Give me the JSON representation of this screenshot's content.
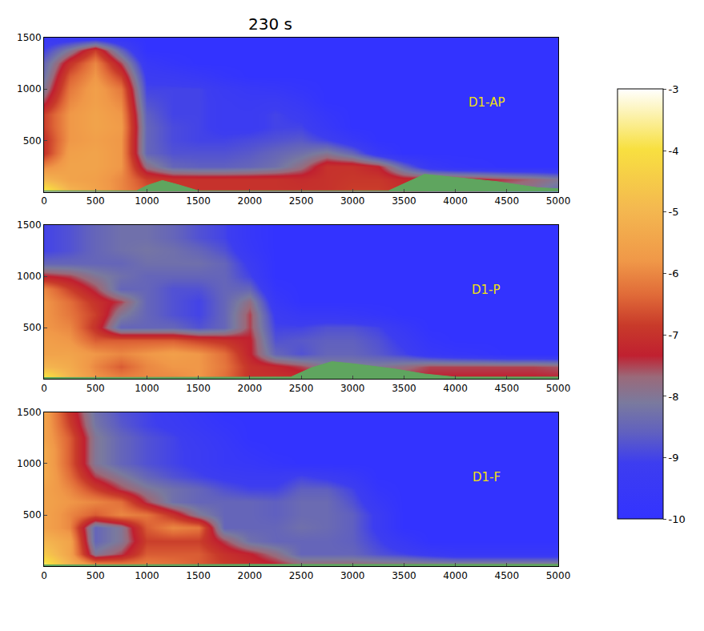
{
  "title": "230 s",
  "colorbar": {
    "zlim": [
      -10,
      -3
    ],
    "zticks": [
      -3,
      -4,
      -5,
      -6,
      -7,
      -8,
      -9,
      -10
    ]
  },
  "chart_data": [
    {
      "type": "heatmap",
      "label": "D1-AP",
      "xlim": [
        0,
        5000
      ],
      "xticks": [
        0,
        500,
        1000,
        1500,
        2000,
        2500,
        3000,
        3500,
        4000,
        4500,
        5000
      ],
      "ylim": [
        0,
        1500
      ],
      "yticks": [
        500,
        1000,
        1500
      ],
      "x": [
        0,
        250,
        500,
        750,
        1000,
        1250,
        1500,
        1750,
        2000,
        2250,
        2500,
        2750,
        3000,
        3250,
        3500,
        3750,
        4000,
        4250,
        4500,
        4750,
        5000
      ],
      "y": [
        0,
        125,
        250,
        375,
        500,
        625,
        750,
        875,
        1000,
        1125,
        1250,
        1375,
        1500
      ],
      "z": [
        [
          -3.5,
          -5,
          -5.5,
          -6,
          -6.5,
          -6.8,
          -7,
          -7,
          -7,
          -7,
          -7,
          -7,
          -6.8,
          -6.8,
          -7,
          -7.5,
          -7.5,
          -7.5,
          -8,
          -8,
          -8.5
        ],
        [
          -5,
          -5.5,
          -5.6,
          -6,
          -6.8,
          -7,
          -7,
          -7,
          -7,
          -7,
          -7.1,
          -7,
          -6.9,
          -6.9,
          -7.2,
          -7.2,
          -7.2,
          -7.3,
          -7.5,
          -7.7,
          -8
        ],
        [
          -6,
          -5.5,
          -5.5,
          -5.8,
          -7.8,
          -8.5,
          -8.6,
          -8.6,
          -8.5,
          -8.3,
          -7.8,
          -7,
          -7,
          -7.3,
          -8.5,
          -9.5,
          -9.8,
          -9.9,
          -10,
          -10,
          -10
        ],
        [
          -7,
          -5.6,
          -5.5,
          -5.8,
          -8.5,
          -8.8,
          -8.8,
          -8.8,
          -8.7,
          -8.5,
          -8.3,
          -8,
          -8.5,
          -9.5,
          -10,
          -10,
          -10,
          -10,
          -10,
          -10,
          -10
        ],
        [
          -7,
          -5.8,
          -5.6,
          -5.8,
          -8.5,
          -8.9,
          -9,
          -9,
          -8.9,
          -8.8,
          -8.7,
          -9,
          -9.5,
          -10,
          -10,
          -10,
          -10,
          -10,
          -10,
          -10,
          -10
        ],
        [
          -6.8,
          -5.8,
          -5.5,
          -5.7,
          -8.5,
          -8.9,
          -9,
          -9.2,
          -9.2,
          -9,
          -9,
          -9.5,
          -10,
          -10,
          -10,
          -10,
          -10,
          -10,
          -10,
          -10,
          -10
        ],
        [
          -6.8,
          -5.8,
          -5.5,
          -5.8,
          -8.6,
          -9,
          -9,
          -9.2,
          -9.2,
          -9,
          -9.2,
          -9.7,
          -10,
          -10,
          -10,
          -10,
          -10,
          -10,
          -10,
          -10,
          -10
        ],
        [
          -7.5,
          -6,
          -5.6,
          -6,
          -8.8,
          -9,
          -9,
          -9.2,
          -9.3,
          -9.2,
          -9.5,
          -10,
          -10,
          -10,
          -10,
          -10,
          -10,
          -10,
          -10,
          -10,
          -10
        ],
        [
          -8,
          -6.2,
          -5.6,
          -6.2,
          -9,
          -9,
          -9,
          -9.3,
          -9.5,
          -9.6,
          -9.8,
          -10,
          -10,
          -10,
          -10,
          -10,
          -10,
          -10,
          -10,
          -10,
          -10
        ],
        [
          -8.3,
          -6.5,
          -5.8,
          -6.8,
          -9.2,
          -9.3,
          -9.5,
          -9.8,
          -10,
          -10,
          -10,
          -10,
          -10,
          -10,
          -10,
          -10,
          -10,
          -10,
          -10,
          -10,
          -10
        ],
        [
          -8.5,
          -7,
          -6,
          -7.5,
          -9.5,
          -9.8,
          -10,
          -10,
          -10,
          -10,
          -10,
          -10,
          -10,
          -10,
          -10,
          -10,
          -10,
          -10,
          -10,
          -10,
          -10
        ],
        [
          -9,
          -8,
          -6.8,
          -8.5,
          -10,
          -10,
          -10,
          -10,
          -10,
          -10,
          -10,
          -10,
          -10,
          -10,
          -10,
          -10,
          -10,
          -10,
          -10,
          -10,
          -10
        ],
        [
          -9.5,
          -9.5,
          -9.5,
          -9.8,
          -10,
          -10,
          -10,
          -10,
          -10,
          -10,
          -10,
          -10,
          -10,
          -10,
          -10,
          -10,
          -10,
          -10,
          -10,
          -10,
          -10
        ]
      ],
      "terrain": {
        "x": [
          0,
          900,
          1000,
          1150,
          1300,
          1500,
          3350,
          3500,
          3700,
          4000,
          4400,
          4800,
          5000
        ],
        "y": [
          10,
          10,
          60,
          110,
          70,
          10,
          10,
          80,
          170,
          140,
          100,
          40,
          30
        ]
      }
    },
    {
      "type": "heatmap",
      "label": "D1-P",
      "xlim": [
        0,
        5000
      ],
      "xticks": [
        0,
        500,
        1000,
        1500,
        2000,
        2500,
        3000,
        3500,
        4000,
        4500,
        5000
      ],
      "ylim": [
        0,
        1500
      ],
      "yticks": [
        500,
        1000,
        1500
      ],
      "x": [
        0,
        250,
        500,
        750,
        1000,
        1250,
        1500,
        1750,
        2000,
        2250,
        2500,
        2750,
        3000,
        3250,
        3500,
        3750,
        4000,
        4250,
        4500,
        4750,
        5000
      ],
      "y": [
        0,
        125,
        250,
        375,
        500,
        625,
        750,
        875,
        1000,
        1125,
        1250,
        1375,
        1500
      ],
      "z": [
        [
          -3.5,
          -5,
          -5.8,
          -6,
          -6,
          -6,
          -5.8,
          -6.3,
          -7,
          -7,
          -7,
          -7,
          -7.2,
          -7.2,
          -7.3,
          -7.3,
          -7.3,
          -7.3,
          -7.3,
          -7.3,
          -7.3
        ],
        [
          -5,
          -5.3,
          -6,
          -6.5,
          -6,
          -5.8,
          -5.8,
          -6.2,
          -7,
          -7.2,
          -7.5,
          -8,
          -8,
          -8,
          -7.8,
          -7.5,
          -7.5,
          -7.5,
          -7.5,
          -7.5,
          -7.6
        ],
        [
          -5.5,
          -5.5,
          -5.8,
          -6,
          -5.8,
          -5.6,
          -5.8,
          -6.3,
          -7.3,
          -8.5,
          -8.8,
          -8.5,
          -8.5,
          -8.7,
          -9,
          -9.5,
          -9.7,
          -9.8,
          -10,
          -10,
          -10
        ],
        [
          -5.6,
          -5.8,
          -6.5,
          -6.5,
          -6.5,
          -6.5,
          -6.8,
          -7,
          -7.3,
          -8.8,
          -8.7,
          -8.6,
          -8.6,
          -8.8,
          -9.2,
          -9.8,
          -10,
          -10,
          -10,
          -10,
          -10
        ],
        [
          -5.8,
          -6,
          -7,
          -8.5,
          -8.5,
          -8.5,
          -8.8,
          -8.5,
          -7.5,
          -9,
          -9,
          -8.8,
          -8.8,
          -9,
          -9.5,
          -10,
          -10,
          -10,
          -10,
          -10,
          -10
        ],
        [
          -5.8,
          -6.2,
          -6.8,
          -8,
          -8.5,
          -8.8,
          -9,
          -8.5,
          -7.5,
          -9.2,
          -9.5,
          -9.5,
          -9.6,
          -9.8,
          -10,
          -10,
          -10,
          -10,
          -10,
          -10,
          -10
        ],
        [
          -5.8,
          -6.3,
          -7,
          -7.5,
          -8.5,
          -8.8,
          -9,
          -8.5,
          -7.8,
          -9.5,
          -10,
          -10,
          -10,
          -10,
          -10,
          -10,
          -10,
          -10,
          -10,
          -10,
          -10
        ],
        [
          -6,
          -6.8,
          -7.5,
          -8.5,
          -8.5,
          -8.8,
          -8.8,
          -8.5,
          -8.5,
          -9.8,
          -10,
          -10,
          -10,
          -10,
          -10,
          -10,
          -10,
          -10,
          -10,
          -10,
          -10
        ],
        [
          -7.3,
          -7.5,
          -8,
          -8.3,
          -8.5,
          -8.5,
          -8.5,
          -8.5,
          -9,
          -10,
          -10,
          -10,
          -10,
          -10,
          -10,
          -10,
          -10,
          -10,
          -10,
          -10,
          -10
        ],
        [
          -8.5,
          -8.5,
          -8.5,
          -8.5,
          -8.3,
          -8.3,
          -8.3,
          -8.5,
          -9.2,
          -10,
          -10,
          -10,
          -10,
          -10,
          -10,
          -10,
          -10,
          -10,
          -10,
          -10,
          -10
        ],
        [
          -9,
          -8.8,
          -8.5,
          -8.3,
          -8.2,
          -8.3,
          -8.5,
          -8.8,
          -9.5,
          -10,
          -10,
          -10,
          -10,
          -10,
          -10,
          -10,
          -10,
          -10,
          -10,
          -10,
          -10
        ],
        [
          -9,
          -8.8,
          -8.5,
          -8.3,
          -8.3,
          -8.5,
          -8.8,
          -9,
          -9.6,
          -10,
          -10,
          -10,
          -10,
          -10,
          -10,
          -10,
          -10,
          -10,
          -10,
          -10,
          -10
        ],
        [
          -9,
          -8.8,
          -8.5,
          -8.3,
          -8.3,
          -8.5,
          -8.8,
          -9,
          -9.6,
          -10,
          -10,
          -10,
          -10,
          -10,
          -10,
          -10,
          -10,
          -10,
          -10,
          -10,
          -10
        ]
      ],
      "terrain": {
        "x": [
          0,
          2400,
          2600,
          2800,
          3000,
          3400,
          3700,
          4000,
          5000
        ],
        "y": [
          15,
          20,
          110,
          170,
          150,
          100,
          50,
          20,
          20
        ]
      }
    },
    {
      "type": "heatmap",
      "label": "D1-F",
      "xlim": [
        0,
        5000
      ],
      "xticks": [
        0,
        500,
        1000,
        1500,
        2000,
        2500,
        3000,
        3500,
        4000,
        4500,
        5000
      ],
      "ylim": [
        0,
        1500
      ],
      "yticks": [
        500,
        1000,
        1500
      ],
      "x": [
        0,
        250,
        500,
        750,
        1000,
        1250,
        1500,
        1750,
        2000,
        2250,
        2500,
        2750,
        3000,
        3250,
        3500,
        3750,
        4000,
        4250,
        4500,
        4750,
        5000
      ],
      "y": [
        0,
        125,
        250,
        375,
        500,
        625,
        750,
        875,
        1000,
        1125,
        1250,
        1375,
        1500
      ],
      "z": [
        [
          -3.5,
          -5,
          -5.5,
          -5.8,
          -6,
          -6.2,
          -6.5,
          -6.8,
          -7,
          -7.2,
          -7.5,
          -7.5,
          -7.5,
          -7.5,
          -7.5,
          -7.5,
          -7.5,
          -7.5,
          -7.5,
          -7.5,
          -7.5
        ],
        [
          -4.5,
          -5.5,
          -8,
          -7.5,
          -6.5,
          -6.5,
          -6.5,
          -7,
          -7.3,
          -7.8,
          -8.5,
          -8.5,
          -8.5,
          -8.8,
          -9,
          -9.3,
          -9.5,
          -9.5,
          -9.5,
          -9.5,
          -9.5
        ],
        [
          -5,
          -5.5,
          -8.5,
          -8,
          -6.8,
          -6.8,
          -6.8,
          -7.5,
          -8.3,
          -8.5,
          -8.5,
          -8.5,
          -8.6,
          -9,
          -9.5,
          -10,
          -10,
          -10,
          -10,
          -10,
          -10
        ],
        [
          -5.5,
          -6,
          -8.5,
          -8,
          -6.5,
          -6,
          -6.2,
          -8.5,
          -8.5,
          -8.5,
          -8.3,
          -8.4,
          -8.6,
          -9.2,
          -10,
          -10,
          -10,
          -10,
          -10,
          -10,
          -10
        ],
        [
          -5.5,
          -6,
          -6.5,
          -6,
          -6.2,
          -7,
          -8,
          -8.5,
          -8.5,
          -8.6,
          -8.4,
          -8.4,
          -8.6,
          -9.2,
          -10,
          -10,
          -10,
          -10,
          -10,
          -10,
          -10
        ],
        [
          -5.5,
          -5.8,
          -6,
          -6.3,
          -7.5,
          -8.3,
          -8.5,
          -8.5,
          -8.5,
          -8.6,
          -8.4,
          -8.4,
          -8.8,
          -9.5,
          -10,
          -10,
          -10,
          -10,
          -10,
          -10,
          -10
        ],
        [
          -5.5,
          -6,
          -6.8,
          -7.5,
          -8,
          -8.3,
          -8.5,
          -8.8,
          -9,
          -9,
          -8.6,
          -8.6,
          -9,
          -9.8,
          -10,
          -10,
          -10,
          -10,
          -10,
          -10,
          -10
        ],
        [
          -5.3,
          -6.3,
          -7.5,
          -8,
          -8.5,
          -8.8,
          -9,
          -9.2,
          -9.3,
          -9.3,
          -9,
          -9.2,
          -9.5,
          -10,
          -10,
          -10,
          -10,
          -10,
          -10,
          -10,
          -10
        ],
        [
          -5.3,
          -6.5,
          -8,
          -8.5,
          -8.8,
          -9,
          -9.2,
          -9.5,
          -9.6,
          -9.8,
          -10,
          -10,
          -10,
          -10,
          -10,
          -10,
          -10,
          -10,
          -10,
          -10,
          -10
        ],
        [
          -5.3,
          -6.5,
          -8,
          -8.5,
          -8.8,
          -9,
          -9.2,
          -9.5,
          -9.8,
          -10,
          -10,
          -10,
          -10,
          -10,
          -10,
          -10,
          -10,
          -10,
          -10,
          -10,
          -10
        ],
        [
          -5.5,
          -6.5,
          -8,
          -8.5,
          -8.8,
          -9,
          -9.3,
          -9.6,
          -10,
          -10,
          -10,
          -10,
          -10,
          -10,
          -10,
          -10,
          -10,
          -10,
          -10,
          -10,
          -10
        ],
        [
          -5.5,
          -6.8,
          -8.2,
          -8.7,
          -9,
          -9.2,
          -9.5,
          -9.8,
          -10,
          -10,
          -10,
          -10,
          -10,
          -10,
          -10,
          -10,
          -10,
          -10,
          -10,
          -10,
          -10
        ],
        [
          -5.5,
          -7,
          -8.3,
          -8.8,
          -9,
          -9.3,
          -9.6,
          -10,
          -10,
          -10,
          -10,
          -10,
          -10,
          -10,
          -10,
          -10,
          -10,
          -10,
          -10,
          -10,
          -10
        ]
      ],
      "terrain": {
        "x": [
          0,
          2000,
          5000
        ],
        "y": [
          15,
          20,
          20
        ]
      }
    }
  ]
}
